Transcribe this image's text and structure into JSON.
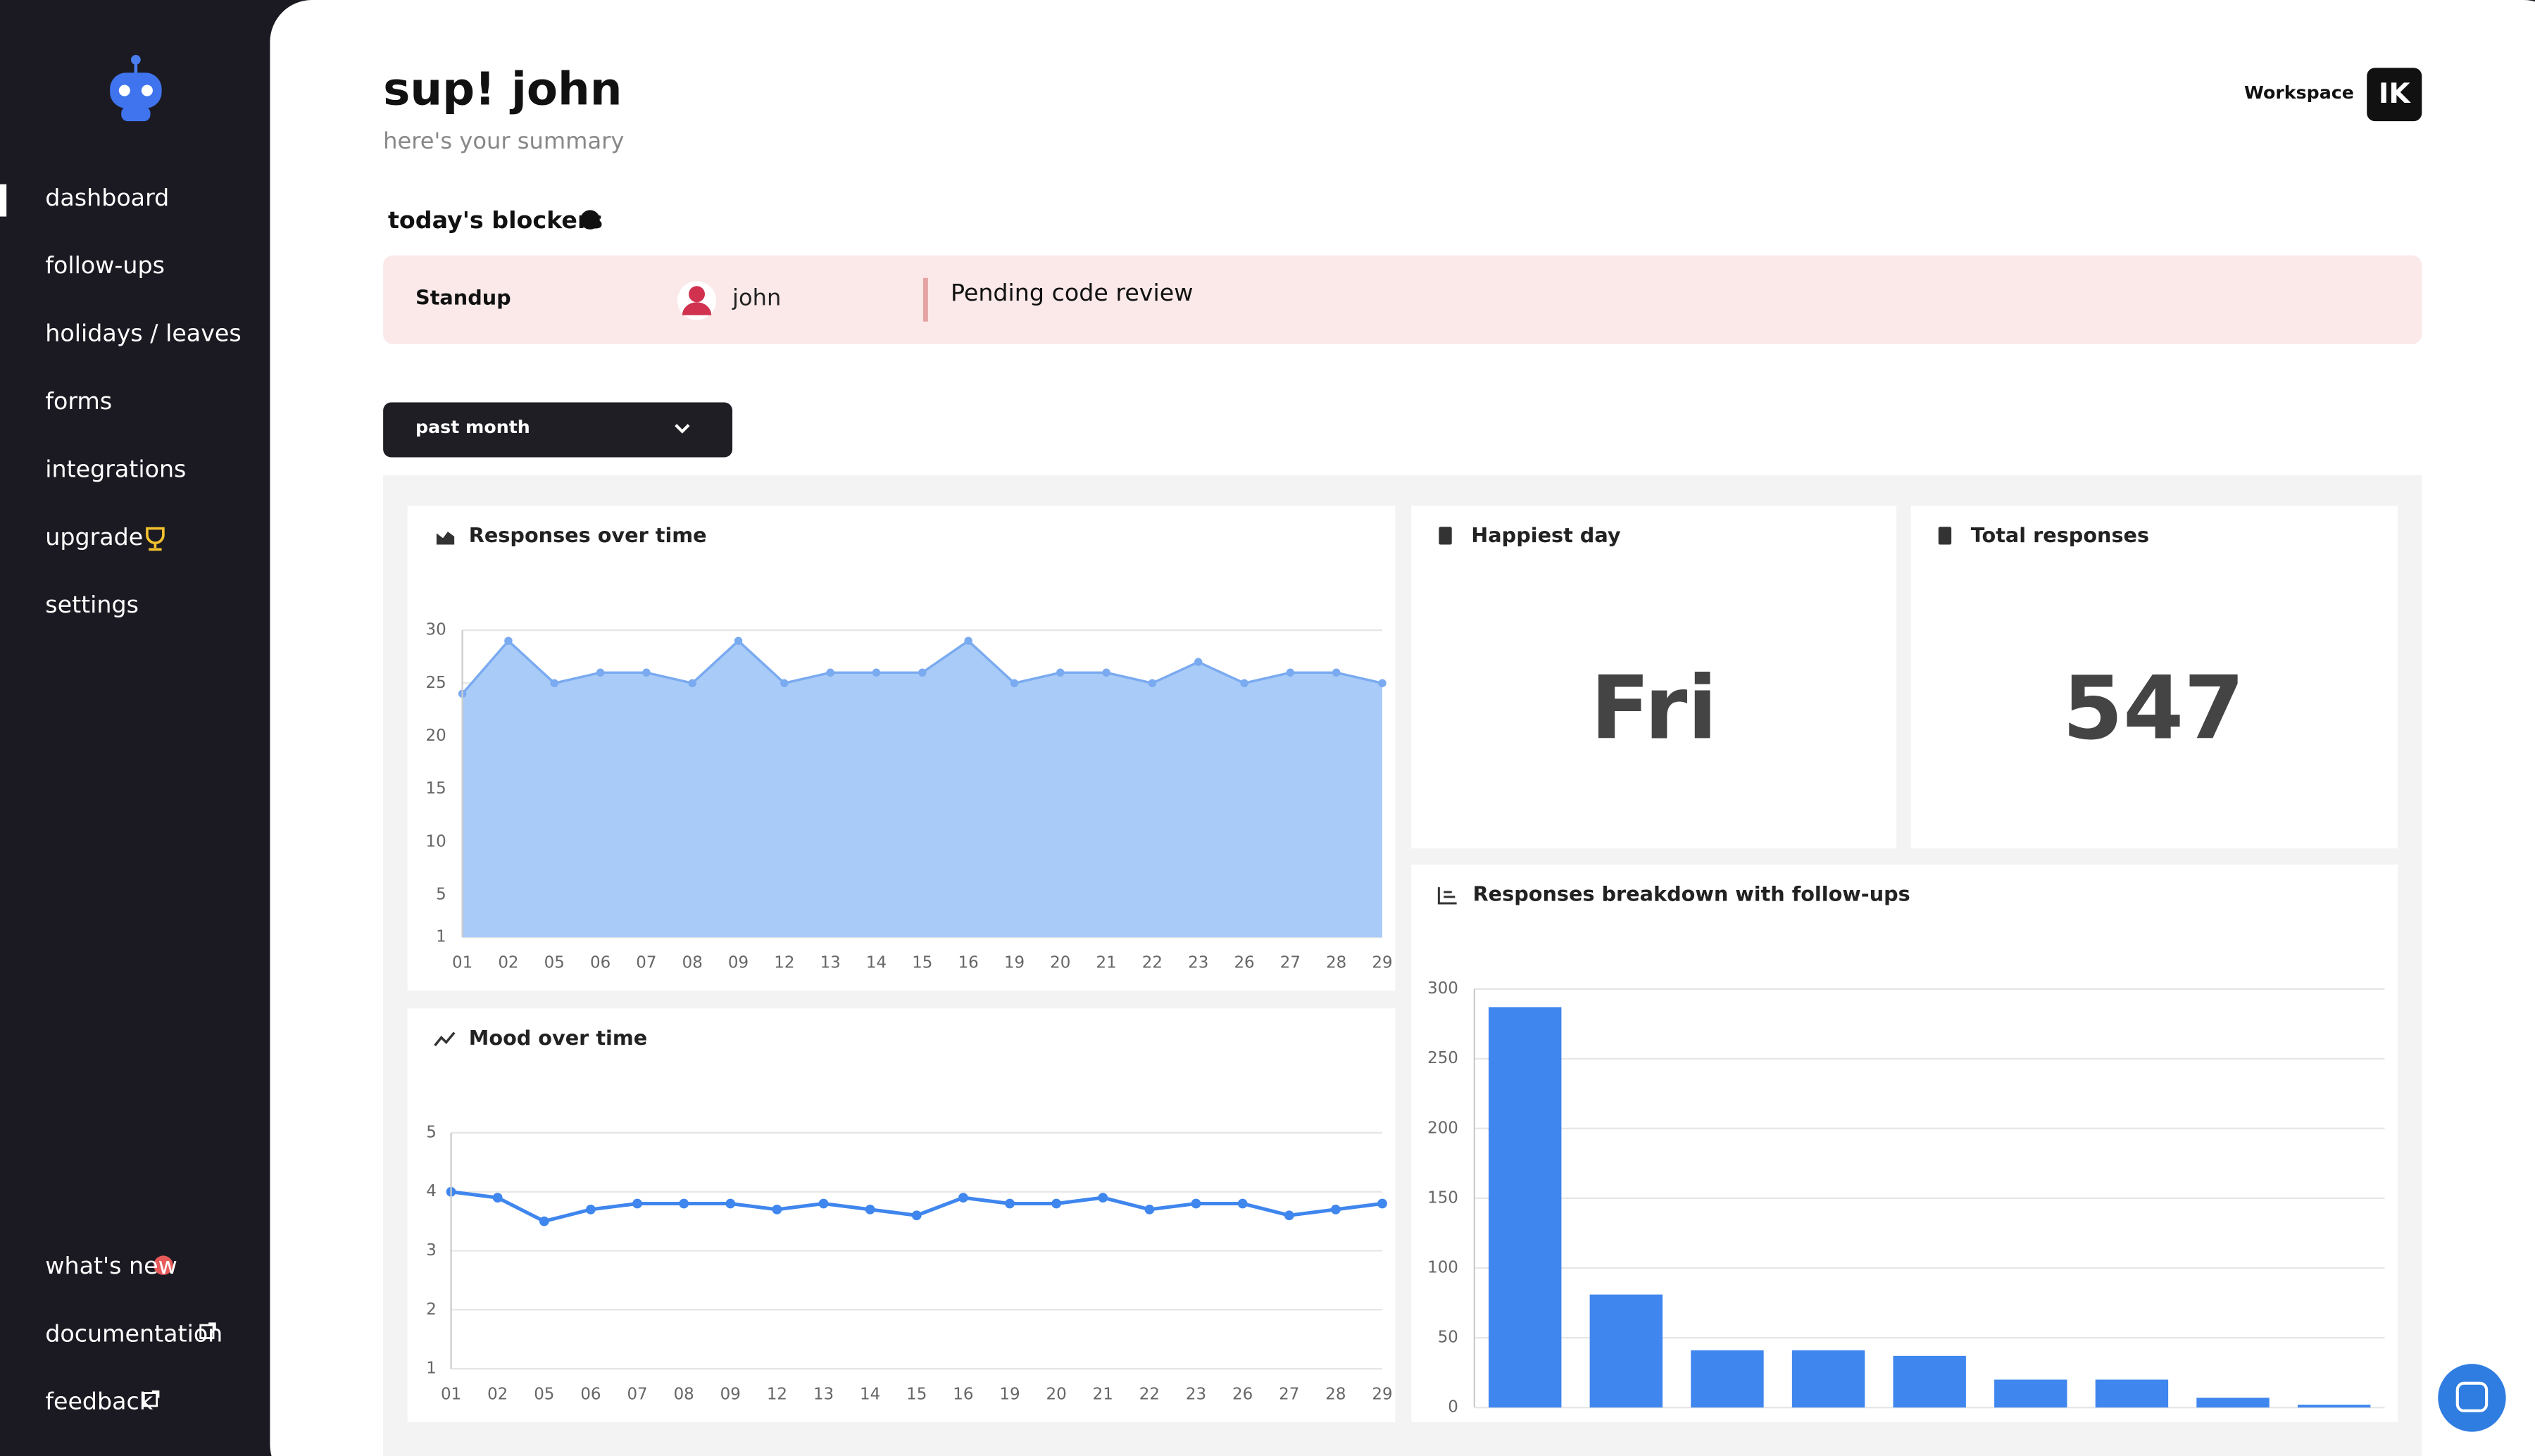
{
  "sidebar": {
    "nav": [
      "dashboard",
      "follow-ups",
      "holidays / leaves",
      "forms",
      "integrations",
      "upgrade",
      "settings"
    ],
    "footer": [
      "what's new",
      "documentation",
      "feedback"
    ]
  },
  "header": {
    "title": "sup! john",
    "subtitle": "here's your summary",
    "workspace": "Workspace",
    "workspace_logo": "IK"
  },
  "blockers": {
    "title": "today's blockers",
    "rows": [
      [
        "Standup",
        "john",
        "Pending code review"
      ]
    ]
  },
  "filter": "past month",
  "stats": [
    {
      "title": "Happiest day",
      "value": "Fri"
    },
    {
      "title": "Total responses",
      "value": "547"
    }
  ],
  "chart_data": [
    {
      "type": "area",
      "title": "Responses over time",
      "color": "#7aaaf0",
      "fill": "#a9cbf7",
      "categories": [
        "01",
        "02",
        "05",
        "06",
        "07",
        "08",
        "09",
        "12",
        "13",
        "14",
        "15",
        "16",
        "19",
        "20",
        "21",
        "22",
        "23",
        "26",
        "27",
        "28",
        "29"
      ],
      "values": [
        24,
        29,
        25,
        26,
        26,
        25,
        29,
        25,
        26,
        26,
        26,
        29,
        25,
        26,
        26,
        25,
        27,
        25,
        26,
        26,
        25
      ],
      "ylim": [
        1,
        30
      ],
      "yticks": [
        1,
        5,
        10,
        15,
        20,
        25,
        30
      ],
      "grid": true
    },
    {
      "type": "line",
      "title": "Mood over time",
      "color": "#3f86ee",
      "categories": [
        "01",
        "02",
        "05",
        "06",
        "07",
        "08",
        "09",
        "12",
        "13",
        "14",
        "15",
        "16",
        "19",
        "20",
        "21",
        "22",
        "23",
        "26",
        "27",
        "28",
        "29"
      ],
      "values": [
        4.0,
        3.9,
        3.5,
        3.7,
        3.8,
        3.8,
        3.8,
        3.7,
        3.8,
        3.7,
        3.6,
        3.9,
        3.8,
        3.8,
        3.9,
        3.7,
        3.8,
        3.8,
        3.6,
        3.7,
        3.8
      ],
      "ylim": [
        1,
        5
      ],
      "yticks": [
        1,
        2,
        3,
        4,
        5
      ],
      "grid": true
    },
    {
      "type": "bar",
      "title": "Responses breakdown with follow-ups",
      "color": "#3f86ee",
      "values": [
        287,
        81,
        41,
        41,
        37,
        20,
        20,
        7,
        2
      ],
      "ylim": [
        0,
        300
      ],
      "yticks": [
        0,
        50,
        100,
        150,
        200,
        250,
        300
      ],
      "grid": true
    }
  ]
}
